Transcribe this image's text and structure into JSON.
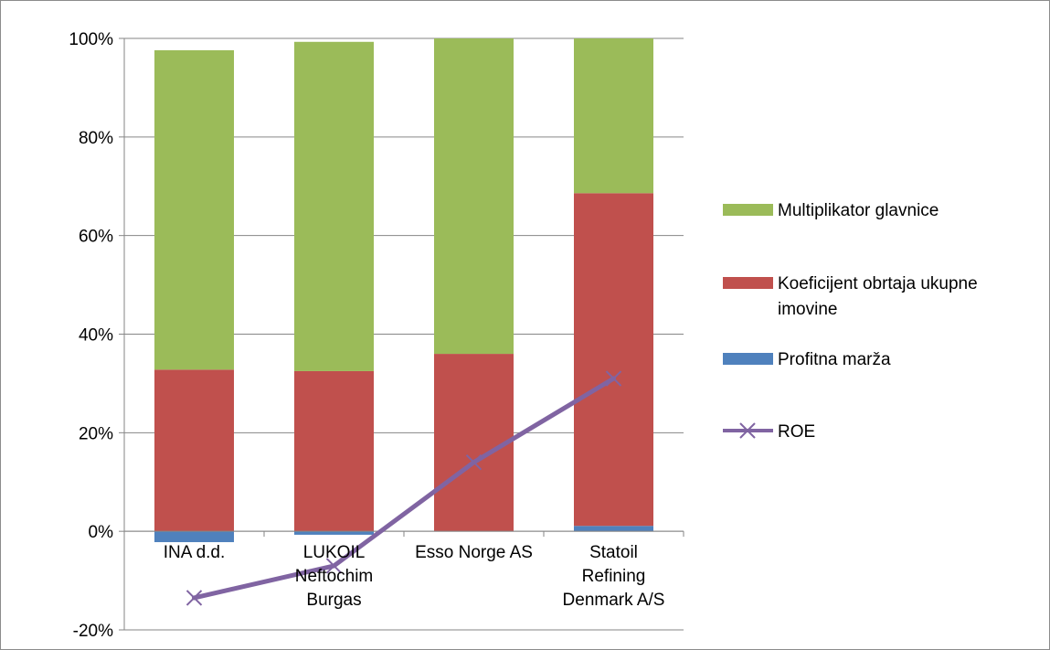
{
  "chart_data": {
    "type": "bar",
    "stacked": true,
    "categories": [
      [
        "INA d.d."
      ],
      [
        "LUKOIL",
        "Neftochim",
        "Burgas"
      ],
      [
        "Esso Norge AS"
      ],
      [
        "Statoil",
        "Refining",
        "Denmark A/S"
      ]
    ],
    "series": [
      {
        "name": "Profitna marža",
        "kind": "bar",
        "color": "#4f81bd",
        "values": [
          -2.2,
          -0.7,
          0.0,
          1.1
        ]
      },
      {
        "name": "Koeficijent obrtaja ukupne imovine",
        "kind": "bar",
        "color": "#c0504d",
        "values": [
          32.8,
          32.5,
          36.0,
          67.5
        ]
      },
      {
        "name": "Multiplikator glavnice",
        "kind": "bar",
        "color": "#9bbb59",
        "values": [
          64.8,
          66.8,
          64.0,
          31.4
        ]
      },
      {
        "name": "ROE",
        "kind": "line",
        "color": "#8064a2",
        "marker": "x",
        "values": [
          -13.5,
          -7.0,
          14.0,
          31.0
        ]
      }
    ],
    "yticks": [
      "-20%",
      "0%",
      "20%",
      "40%",
      "60%",
      "80%",
      "100%"
    ],
    "ylim": [
      -20,
      100
    ],
    "grid": true,
    "legend_position": "right",
    "legend_order": [
      "Multiplikator glavnice",
      "Koeficijent obrtaja ukupne imovine",
      "Profitna marža",
      "ROE"
    ],
    "legend_lines": {
      "Multiplikator glavnice": [
        "Multiplikator glavnice"
      ],
      "Koeficijent obrtaja ukupne imovine": [
        "Koeficijent obrtaja ukupne",
        "imovine"
      ],
      "Profitna marža": [
        "Profitna marža"
      ],
      "ROE": [
        "ROE"
      ]
    }
  }
}
